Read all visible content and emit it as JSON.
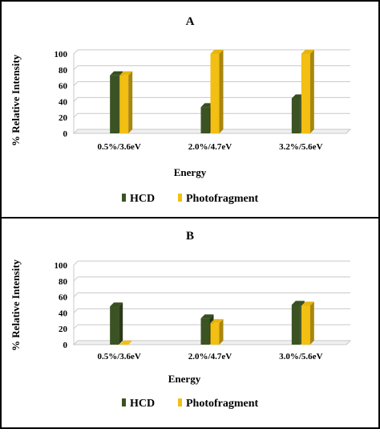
{
  "chart_data": [
    {
      "type": "bar",
      "title": "A",
      "xlabel": "Energy",
      "ylabel": "% Relative Intensity",
      "ylim": [
        0,
        100
      ],
      "yticks": [
        "0",
        "20",
        "40",
        "60",
        "80",
        "100"
      ],
      "categories": [
        "0.5%/3.6eV",
        "2.0%/4.7eV",
        "3.2%/5.6eV"
      ],
      "series": [
        {
          "name": "HCD",
          "color": "#3b5323",
          "values": [
            73,
            33,
            44
          ]
        },
        {
          "name": "Photofragment",
          "color": "#f2bf12",
          "values": [
            73,
            100,
            100
          ]
        }
      ],
      "grid": true,
      "legend": "bottom"
    },
    {
      "type": "bar",
      "title": "B",
      "xlabel": "Energy",
      "ylabel": "% Relative Intensity",
      "ylim": [
        0,
        100
      ],
      "yticks": [
        "0",
        "20",
        "40",
        "60",
        "80",
        "100"
      ],
      "categories": [
        "0.5%/3.6eV",
        "2.0%/4.7eV",
        "3.0%/5.6eV"
      ],
      "series": [
        {
          "name": "HCD",
          "color": "#3b5323",
          "values": [
            48,
            33,
            50
          ]
        },
        {
          "name": "Photofragment",
          "color": "#f2bf12",
          "values": [
            0,
            27,
            49
          ]
        }
      ],
      "grid": true,
      "legend": "bottom"
    }
  ]
}
